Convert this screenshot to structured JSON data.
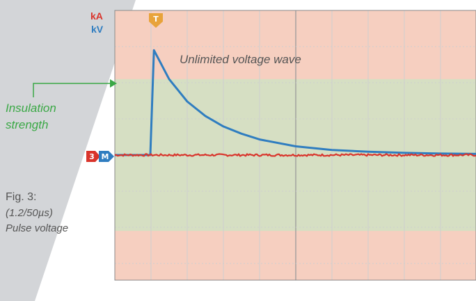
{
  "labels": {
    "unit_current": "kA",
    "unit_voltage": "kV",
    "wave_label": "Unlimited voltage wave",
    "insulation_line1": "Insulation",
    "insulation_line2": "strength",
    "figure_title": "Fig. 3:",
    "figure_sub1": "(1.2/50µs)",
    "figure_sub2": "Pulse voltage"
  },
  "markers": {
    "trigger": "T",
    "channel_current": "3",
    "channel_voltage": "M"
  },
  "colors": {
    "background_band": "#f6cfc0",
    "insulation_band": "#d6dfc3",
    "sidebar": "#d3d5d8",
    "voltage_trace": "#2f7dc0",
    "current_trace": "#d9342b",
    "insulation_label": "#3aa845",
    "trigger_marker": "#e8a33a"
  },
  "chart_data": {
    "type": "line",
    "x_divisions": 10,
    "y_divisions": 8,
    "ylim": [
      -4,
      4
    ],
    "grid": true,
    "insulation_band": [
      -2.1,
      2.1
    ],
    "series": [
      {
        "id": "voltage",
        "x": [
          0,
          0.98,
          1.08,
          1.5,
          2,
          2.5,
          3,
          3.5,
          4,
          5,
          6,
          7,
          8,
          9,
          10
        ],
        "y": [
          0.0,
          0.0,
          2.9,
          2.1,
          1.48,
          1.08,
          0.79,
          0.59,
          0.43,
          0.24,
          0.14,
          0.09,
          0.06,
          0.04,
          0.03
        ]
      },
      {
        "id": "current",
        "x": [
          0,
          10
        ],
        "y": [
          0,
          0
        ]
      }
    ]
  }
}
